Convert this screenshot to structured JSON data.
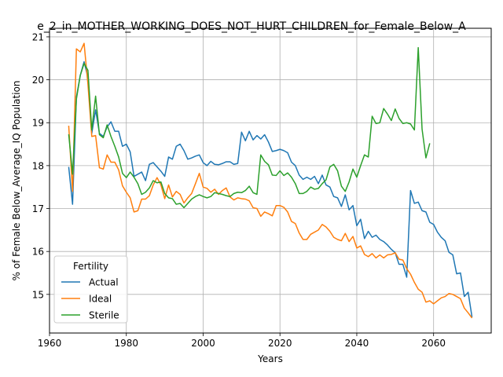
{
  "chart_data": {
    "type": "line",
    "title": "e_2_in_MOTHER_WORKING_DOES_NOT_HURT_CHILDREN_for_Female_Below_A",
    "xlabel": "Years",
    "ylabel": "% of Female Below_Average_IQ Population",
    "xlim": [
      1960,
      2075
    ],
    "ylim": [
      14.1,
      21.2
    ],
    "xticks": [
      1960,
      1980,
      2000,
      2020,
      2040,
      2060
    ],
    "yticks": [
      15,
      16,
      17,
      18,
      19,
      20,
      21
    ],
    "grid": true,
    "legend": {
      "title": "Fertility",
      "placement": "lower-left"
    },
    "series": [
      {
        "name": "Actual",
        "color": "#1f77b4",
        "points": [
          [
            1965,
            17.97
          ],
          [
            1966,
            17.1
          ],
          [
            1967,
            19.6
          ],
          [
            1968,
            20.1
          ],
          [
            1969,
            20.42
          ],
          [
            1970,
            20.05
          ],
          [
            1971,
            18.75
          ],
          [
            1972,
            19.3
          ],
          [
            1973,
            18.75
          ],
          [
            1974,
            18.68
          ],
          [
            1975,
            18.9
          ],
          [
            1976,
            19.02
          ],
          [
            1977,
            18.8
          ],
          [
            1978,
            18.8
          ],
          [
            1979,
            18.45
          ],
          [
            1980,
            18.5
          ],
          [
            1981,
            18.32
          ],
          [
            1982,
            17.75
          ],
          [
            1983,
            17.8
          ],
          [
            1984,
            17.85
          ],
          [
            1985,
            17.65
          ],
          [
            1986,
            18.03
          ],
          [
            1987,
            18.07
          ],
          [
            1988,
            17.97
          ],
          [
            1989,
            17.87
          ],
          [
            1990,
            17.75
          ],
          [
            1991,
            18.2
          ],
          [
            1992,
            18.15
          ],
          [
            1993,
            18.45
          ],
          [
            1994,
            18.5
          ],
          [
            1995,
            18.35
          ],
          [
            1996,
            18.15
          ],
          [
            1997,
            18.18
          ],
          [
            1998,
            18.22
          ],
          [
            1999,
            18.25
          ],
          [
            2000,
            18.07
          ],
          [
            2001,
            18.0
          ],
          [
            2002,
            18.1
          ],
          [
            2003,
            18.03
          ],
          [
            2004,
            18.02
          ],
          [
            2005,
            18.05
          ],
          [
            2006,
            18.09
          ],
          [
            2007,
            18.09
          ],
          [
            2008,
            18.03
          ],
          [
            2009,
            18.05
          ],
          [
            2010,
            18.78
          ],
          [
            2011,
            18.58
          ],
          [
            2012,
            18.8
          ],
          [
            2013,
            18.6
          ],
          [
            2014,
            18.7
          ],
          [
            2015,
            18.62
          ],
          [
            2016,
            18.72
          ],
          [
            2017,
            18.55
          ],
          [
            2018,
            18.33
          ],
          [
            2019,
            18.35
          ],
          [
            2020,
            18.38
          ],
          [
            2021,
            18.35
          ],
          [
            2022,
            18.3
          ],
          [
            2023,
            18.08
          ],
          [
            2024,
            18.0
          ],
          [
            2025,
            17.78
          ],
          [
            2026,
            17.68
          ],
          [
            2027,
            17.73
          ],
          [
            2028,
            17.68
          ],
          [
            2029,
            17.75
          ],
          [
            2030,
            17.58
          ],
          [
            2031,
            17.78
          ],
          [
            2032,
            17.55
          ],
          [
            2033,
            17.5
          ],
          [
            2034,
            17.28
          ],
          [
            2035,
            17.25
          ],
          [
            2036,
            17.05
          ],
          [
            2037,
            17.32
          ],
          [
            2038,
            16.97
          ],
          [
            2039,
            17.07
          ],
          [
            2040,
            16.6
          ],
          [
            2041,
            16.75
          ],
          [
            2042,
            16.3
          ],
          [
            2043,
            16.47
          ],
          [
            2044,
            16.33
          ],
          [
            2045,
            16.38
          ],
          [
            2046,
            16.28
          ],
          [
            2047,
            16.23
          ],
          [
            2048,
            16.15
          ],
          [
            2049,
            16.05
          ],
          [
            2050,
            15.97
          ],
          [
            2051,
            15.7
          ],
          [
            2052,
            15.7
          ],
          [
            2053,
            15.4
          ],
          [
            2054,
            17.42
          ],
          [
            2055,
            17.12
          ],
          [
            2056,
            17.15
          ],
          [
            2057,
            16.95
          ],
          [
            2058,
            16.92
          ],
          [
            2059,
            16.68
          ],
          [
            2060,
            16.63
          ],
          [
            2061,
            16.45
          ],
          [
            2062,
            16.33
          ],
          [
            2063,
            16.25
          ],
          [
            2064,
            15.98
          ],
          [
            2065,
            15.92
          ],
          [
            2066,
            15.48
          ],
          [
            2067,
            15.5
          ],
          [
            2068,
            14.95
          ],
          [
            2069,
            15.05
          ],
          [
            2070,
            14.47
          ]
        ]
      },
      {
        "name": "Ideal",
        "color": "#ff7f0e",
        "points": [
          [
            1965,
            18.93
          ],
          [
            1966,
            17.4
          ],
          [
            1967,
            20.72
          ],
          [
            1968,
            20.65
          ],
          [
            1969,
            20.85
          ],
          [
            1970,
            19.9
          ],
          [
            1971,
            18.68
          ],
          [
            1972,
            18.7
          ],
          [
            1973,
            17.95
          ],
          [
            1974,
            17.92
          ],
          [
            1975,
            18.25
          ],
          [
            1976,
            18.08
          ],
          [
            1977,
            18.08
          ],
          [
            1978,
            17.9
          ],
          [
            1979,
            17.53
          ],
          [
            1980,
            17.38
          ],
          [
            1981,
            17.25
          ],
          [
            1982,
            16.92
          ],
          [
            1983,
            16.95
          ],
          [
            1984,
            17.22
          ],
          [
            1985,
            17.22
          ],
          [
            1986,
            17.3
          ],
          [
            1987,
            17.55
          ],
          [
            1988,
            17.72
          ],
          [
            1989,
            17.55
          ],
          [
            1990,
            17.23
          ],
          [
            1991,
            17.55
          ],
          [
            1992,
            17.27
          ],
          [
            1993,
            17.4
          ],
          [
            1994,
            17.33
          ],
          [
            1995,
            17.13
          ],
          [
            1996,
            17.25
          ],
          [
            1997,
            17.35
          ],
          [
            1998,
            17.58
          ],
          [
            1999,
            17.82
          ],
          [
            2000,
            17.5
          ],
          [
            2001,
            17.47
          ],
          [
            2002,
            17.38
          ],
          [
            2003,
            17.45
          ],
          [
            2004,
            17.33
          ],
          [
            2005,
            17.42
          ],
          [
            2006,
            17.48
          ],
          [
            2007,
            17.27
          ],
          [
            2008,
            17.2
          ],
          [
            2009,
            17.25
          ],
          [
            2010,
            17.23
          ],
          [
            2011,
            17.22
          ],
          [
            2012,
            17.18
          ],
          [
            2013,
            17.02
          ],
          [
            2014,
            17.0
          ],
          [
            2015,
            16.82
          ],
          [
            2016,
            16.92
          ],
          [
            2017,
            16.88
          ],
          [
            2018,
            16.83
          ],
          [
            2019,
            17.07
          ],
          [
            2020,
            17.07
          ],
          [
            2021,
            17.03
          ],
          [
            2022,
            16.92
          ],
          [
            2023,
            16.7
          ],
          [
            2024,
            16.65
          ],
          [
            2025,
            16.43
          ],
          [
            2026,
            16.28
          ],
          [
            2027,
            16.28
          ],
          [
            2028,
            16.4
          ],
          [
            2029,
            16.45
          ],
          [
            2030,
            16.5
          ],
          [
            2031,
            16.63
          ],
          [
            2032,
            16.57
          ],
          [
            2033,
            16.47
          ],
          [
            2034,
            16.33
          ],
          [
            2035,
            16.28
          ],
          [
            2036,
            16.25
          ],
          [
            2037,
            16.42
          ],
          [
            2038,
            16.23
          ],
          [
            2039,
            16.35
          ],
          [
            2040,
            16.08
          ],
          [
            2041,
            16.13
          ],
          [
            2042,
            15.93
          ],
          [
            2043,
            15.88
          ],
          [
            2044,
            15.95
          ],
          [
            2045,
            15.85
          ],
          [
            2046,
            15.92
          ],
          [
            2047,
            15.85
          ],
          [
            2048,
            15.92
          ],
          [
            2049,
            15.93
          ],
          [
            2050,
            15.97
          ],
          [
            2051,
            15.82
          ],
          [
            2052,
            15.8
          ],
          [
            2053,
            15.6
          ],
          [
            2054,
            15.47
          ],
          [
            2055,
            15.28
          ],
          [
            2056,
            15.12
          ],
          [
            2057,
            15.05
          ],
          [
            2058,
            14.82
          ],
          [
            2059,
            14.85
          ],
          [
            2060,
            14.78
          ],
          [
            2061,
            14.85
          ],
          [
            2062,
            14.92
          ],
          [
            2063,
            14.95
          ],
          [
            2064,
            15.02
          ],
          [
            2065,
            15.0
          ],
          [
            2066,
            14.95
          ],
          [
            2067,
            14.9
          ],
          [
            2068,
            14.68
          ],
          [
            2069,
            14.57
          ],
          [
            2070,
            14.45
          ]
        ]
      },
      {
        "name": "Sterile",
        "color": "#2ca02c",
        "points": [
          [
            1965,
            18.73
          ],
          [
            1966,
            17.8
          ],
          [
            1967,
            19.55
          ],
          [
            1968,
            20.1
          ],
          [
            1969,
            20.38
          ],
          [
            1970,
            20.22
          ],
          [
            1971,
            18.83
          ],
          [
            1972,
            19.62
          ],
          [
            1973,
            18.72
          ],
          [
            1974,
            18.65
          ],
          [
            1975,
            18.95
          ],
          [
            1976,
            18.68
          ],
          [
            1977,
            18.45
          ],
          [
            1978,
            18.2
          ],
          [
            1979,
            17.82
          ],
          [
            1980,
            17.72
          ],
          [
            1981,
            17.85
          ],
          [
            1982,
            17.73
          ],
          [
            1983,
            17.58
          ],
          [
            1984,
            17.33
          ],
          [
            1985,
            17.38
          ],
          [
            1986,
            17.48
          ],
          [
            1987,
            17.65
          ],
          [
            1988,
            17.6
          ],
          [
            1989,
            17.62
          ],
          [
            1990,
            17.35
          ],
          [
            1991,
            17.25
          ],
          [
            1992,
            17.23
          ],
          [
            1993,
            17.1
          ],
          [
            1994,
            17.12
          ],
          [
            1995,
            17.02
          ],
          [
            1996,
            17.12
          ],
          [
            1997,
            17.22
          ],
          [
            1998,
            17.28
          ],
          [
            1999,
            17.32
          ],
          [
            2000,
            17.28
          ],
          [
            2001,
            17.25
          ],
          [
            2002,
            17.28
          ],
          [
            2003,
            17.37
          ],
          [
            2004,
            17.35
          ],
          [
            2005,
            17.33
          ],
          [
            2006,
            17.3
          ],
          [
            2007,
            17.28
          ],
          [
            2008,
            17.35
          ],
          [
            2009,
            17.38
          ],
          [
            2010,
            17.37
          ],
          [
            2011,
            17.42
          ],
          [
            2012,
            17.52
          ],
          [
            2013,
            17.37
          ],
          [
            2014,
            17.33
          ],
          [
            2015,
            18.25
          ],
          [
            2016,
            18.1
          ],
          [
            2017,
            18.02
          ],
          [
            2018,
            17.78
          ],
          [
            2019,
            17.77
          ],
          [
            2020,
            17.88
          ],
          [
            2021,
            17.77
          ],
          [
            2022,
            17.83
          ],
          [
            2023,
            17.73
          ],
          [
            2024,
            17.58
          ],
          [
            2025,
            17.35
          ],
          [
            2026,
            17.35
          ],
          [
            2027,
            17.4
          ],
          [
            2028,
            17.5
          ],
          [
            2029,
            17.45
          ],
          [
            2030,
            17.47
          ],
          [
            2031,
            17.58
          ],
          [
            2032,
            17.67
          ],
          [
            2033,
            17.97
          ],
          [
            2034,
            18.03
          ],
          [
            2035,
            17.88
          ],
          [
            2036,
            17.52
          ],
          [
            2037,
            17.4
          ],
          [
            2038,
            17.62
          ],
          [
            2039,
            17.92
          ],
          [
            2040,
            17.73
          ],
          [
            2041,
            18.0
          ],
          [
            2042,
            18.25
          ],
          [
            2043,
            18.2
          ],
          [
            2044,
            19.15
          ],
          [
            2045,
            18.98
          ],
          [
            2046,
            19.0
          ],
          [
            2047,
            19.33
          ],
          [
            2048,
            19.2
          ],
          [
            2049,
            19.05
          ],
          [
            2050,
            19.32
          ],
          [
            2051,
            19.1
          ],
          [
            2052,
            18.98
          ],
          [
            2053,
            19.0
          ],
          [
            2054,
            18.97
          ],
          [
            2055,
            18.83
          ],
          [
            2056,
            20.75
          ],
          [
            2057,
            18.85
          ],
          [
            2058,
            18.18
          ],
          [
            2059,
            18.52
          ]
        ]
      }
    ]
  }
}
